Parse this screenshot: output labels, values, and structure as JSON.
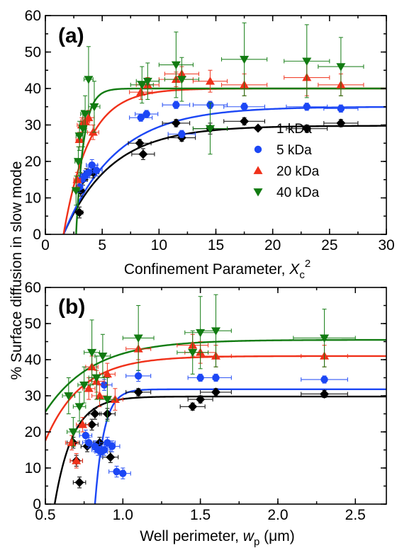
{
  "figure": {
    "ylabel": "% Surface diffusion in slow mode"
  },
  "chart_data": [
    {
      "type": "scatter",
      "panel_label": "(a)",
      "xlabel": "Confinement Parameter, ",
      "xlabel_symbol": "X",
      "xlabel_sub": "c",
      "xlabel_sup": "2",
      "xlim": [
        0,
        30
      ],
      "ylim": [
        0,
        60
      ],
      "xticks": [
        0,
        5,
        10,
        15,
        20,
        25,
        30
      ],
      "xtick_labels": [
        "0",
        "5",
        "10",
        "15",
        "20",
        "25",
        "30"
      ],
      "yticks": [
        0,
        10,
        20,
        30,
        40,
        50,
        60
      ],
      "ytick_labels": [
        "0",
        "10",
        "20",
        "30",
        "40",
        "50",
        "60"
      ],
      "legend": {
        "placement": "center-right",
        "items": [
          "1 kDa",
          "5 kDa",
          "20 kDa",
          "40 kDa"
        ]
      },
      "series": [
        {
          "name": "1 kDa",
          "marker": "diamond",
          "color": "#000000",
          "points": [
            [
              3.0,
              6,
              0.3,
              1.5
            ],
            [
              3.1,
              12,
              0.3,
              1.5
            ],
            [
              3.3,
              15,
              0.4,
              1.5
            ],
            [
              3.6,
              16.5,
              0.4,
              1.5
            ],
            [
              4.2,
              17,
              0.5,
              1.5
            ],
            [
              8.3,
              25,
              1,
              1
            ],
            [
              8.6,
              22,
              1,
              1.5
            ],
            [
              11.5,
              30.5,
              1.2,
              1
            ],
            [
              12,
              26.5,
              1.2,
              1
            ],
            [
              14.5,
              29,
              1.5,
              1.5
            ],
            [
              17.5,
              31,
              1.8,
              1
            ],
            [
              23,
              29,
              1.8,
              1
            ],
            [
              26,
              30.5,
              1.5,
              1
            ]
          ],
          "fit": {
            "plateau": 29.8,
            "onset": 1.6,
            "rate": 0.24
          }
        },
        {
          "name": "5 kDa",
          "marker": "circle",
          "color": "#1c47f5",
          "points": [
            [
              3.0,
              13,
              0.3,
              1.5
            ],
            [
              3.2,
              15,
              0.3,
              1.5
            ],
            [
              3.5,
              16,
              0.4,
              1.5
            ],
            [
              3.8,
              17,
              0.4,
              1.5
            ],
            [
              4.1,
              19,
              0.5,
              1.5
            ],
            [
              4.5,
              17.5,
              0.5,
              1.5
            ],
            [
              8.4,
              32,
              1,
              1
            ],
            [
              8.9,
              33,
              1,
              1
            ],
            [
              11.5,
              35.5,
              1.2,
              1
            ],
            [
              12,
              27.5,
              1.2,
              1
            ],
            [
              14.5,
              35.5,
              1.5,
              1
            ],
            [
              17.5,
              35,
              1.8,
              1
            ],
            [
              23,
              35,
              1.8,
              1
            ],
            [
              26,
              34.5,
              1.5,
              1
            ]
          ],
          "fit": {
            "plateau": 35,
            "onset": 1.6,
            "rate": 0.22
          }
        },
        {
          "name": "20 kDa",
          "marker": "triangle-up",
          "color": "#f0311a",
          "points": [
            [
              2.8,
              15,
              0.3,
              2
            ],
            [
              3.0,
              26,
              0.3,
              2
            ],
            [
              3.2,
              30,
              0.4,
              2
            ],
            [
              3.5,
              31,
              0.4,
              2
            ],
            [
              3.8,
              32,
              0.5,
              2
            ],
            [
              4.2,
              28,
              0.5,
              2
            ],
            [
              8.4,
              39,
              1,
              2
            ],
            [
              9,
              41,
              1,
              2
            ],
            [
              11.5,
              42.5,
              1.5,
              2
            ],
            [
              12,
              44,
              1.5,
              2
            ],
            [
              14.5,
              42,
              1.5,
              3
            ],
            [
              17.5,
              41,
              2,
              3
            ],
            [
              23,
              43,
              2,
              5
            ],
            [
              26,
              41,
              2,
              3
            ]
          ],
          "fit": {
            "plateau": 40,
            "onset": 1.6,
            "rate": 0.45
          }
        },
        {
          "name": "40 kDa",
          "marker": "triangle-down",
          "color": "#117b11",
          "points": [
            [
              2.7,
              12,
              0.3,
              4
            ],
            [
              2.9,
              20,
              0.3,
              4
            ],
            [
              3.0,
              27,
              0.3,
              4
            ],
            [
              3.3,
              29,
              0.3,
              5
            ],
            [
              3.5,
              33,
              0.4,
              5
            ],
            [
              3.8,
              42.5,
              0.4,
              9
            ],
            [
              4.3,
              35,
              0.5,
              7
            ],
            [
              8.5,
              41,
              1,
              5
            ],
            [
              9,
              42,
              1,
              5
            ],
            [
              11.5,
              46.5,
              1.5,
              9
            ],
            [
              12,
              42.5,
              1.5,
              6
            ],
            [
              14.5,
              29,
              1.5,
              7
            ],
            [
              17.5,
              48,
              2,
              10
            ],
            [
              23,
              47.5,
              2,
              10
            ],
            [
              26,
              46,
              2,
              8
            ]
          ],
          "fit": {
            "plateau": 40,
            "onset": 2.7,
            "rate": 1.5
          }
        }
      ]
    },
    {
      "type": "scatter",
      "panel_label": "(b)",
      "xlabel": "Well perimeter, ",
      "xlabel_symbol": "w",
      "xlabel_sub": "p",
      "xlabel_suffix": " (μm)",
      "xlim": [
        0.5,
        2.7
      ],
      "ylim": [
        0,
        60
      ],
      "xticks": [
        0.5,
        1.0,
        1.5,
        2.0,
        2.5
      ],
      "xtick_labels": [
        "0.5",
        "1.0",
        "1.5",
        "2.0",
        "2.5"
      ],
      "yticks": [
        0,
        10,
        20,
        30,
        40,
        50,
        60
      ],
      "ytick_labels": [
        "0",
        "10",
        "20",
        "30",
        "40",
        "50",
        "60"
      ],
      "series": [
        {
          "name": "1 kDa",
          "marker": "diamond",
          "color": "#000000",
          "points": [
            [
              0.68,
              17,
              0.04,
              1.5
            ],
            [
              0.7,
              12,
              0.04,
              1.5
            ],
            [
              0.72,
              6,
              0.04,
              1.5
            ],
            [
              0.77,
              16,
              0.04,
              1.5
            ],
            [
              0.8,
              22,
              0.04,
              1.5
            ],
            [
              0.82,
              25,
              0.04,
              1.5
            ],
            [
              0.85,
              17,
              0.04,
              1.5
            ],
            [
              0.9,
              25,
              0.05,
              1.5
            ],
            [
              0.92,
              13,
              0.05,
              1.5
            ],
            [
              1.1,
              31,
              0.08,
              1
            ],
            [
              1.45,
              27,
              0.08,
              1
            ],
            [
              1.5,
              29,
              0.08,
              1
            ],
            [
              1.6,
              31,
              0.1,
              1
            ],
            [
              2.3,
              30.5,
              0.15,
              1
            ]
          ],
          "fit": {
            "plateau": 29.8,
            "onset": 0.56,
            "rate": 8.5
          }
        },
        {
          "name": "5 kDa",
          "marker": "circle",
          "color": "#1c47f5",
          "points": [
            [
              0.76,
              19,
              0.04,
              1.5
            ],
            [
              0.78,
              17,
              0.04,
              1.5
            ],
            [
              0.82,
              16,
              0.04,
              1.5
            ],
            [
              0.84,
              15,
              0.04,
              1.5
            ],
            [
              0.86,
              14.5,
              0.04,
              1.5
            ],
            [
              0.88,
              15,
              0.04,
              1.5
            ],
            [
              0.9,
              17,
              0.05,
              1.5
            ],
            [
              0.93,
              16,
              0.05,
              1.5
            ],
            [
              0.96,
              9,
              0.05,
              1.5
            ],
            [
              1.0,
              8.5,
              0.05,
              1.5
            ],
            [
              0.88,
              33,
              0.05,
              1.5
            ],
            [
              1.1,
              35.5,
              0.08,
              1.5
            ],
            [
              1.5,
              35,
              0.08,
              1
            ],
            [
              1.6,
              35,
              0.1,
              1
            ],
            [
              2.3,
              34.5,
              0.15,
              1
            ]
          ],
          "fit": {
            "plateau": 31.8,
            "onset": 0.82,
            "rate": 17
          }
        },
        {
          "name": "20 kDa",
          "marker": "triangle-up",
          "color": "#f0311a",
          "points": [
            [
              0.67,
              17,
              0.04,
              2
            ],
            [
              0.7,
              12,
              0.04,
              2
            ],
            [
              0.74,
              22,
              0.04,
              2
            ],
            [
              0.78,
              32,
              0.04,
              3
            ],
            [
              0.8,
              38,
              0.04,
              3
            ],
            [
              0.83,
              34,
              0.05,
              3
            ],
            [
              0.85,
              30,
              0.05,
              3
            ],
            [
              0.9,
              36,
              0.05,
              3
            ],
            [
              0.95,
              29,
              0.05,
              3
            ],
            [
              1.1,
              43,
              0.08,
              3
            ],
            [
              1.45,
              44,
              0.1,
              3
            ],
            [
              1.5,
              42,
              0.1,
              3
            ],
            [
              1.6,
              41,
              0.1,
              3
            ],
            [
              2.3,
              41,
              0.15,
              3
            ]
          ],
          "fit": {
            "plateau": 41,
            "onset": 0.37,
            "rate": 4.3
          }
        },
        {
          "name": "40 kDa",
          "marker": "triangle-down",
          "color": "#117b11",
          "points": [
            [
              0.65,
              30,
              0.04,
              5
            ],
            [
              0.68,
              20,
              0.04,
              4
            ],
            [
              0.72,
              27,
              0.04,
              4
            ],
            [
              0.75,
              33,
              0.04,
              5
            ],
            [
              0.8,
              42,
              0.05,
              9
            ],
            [
              0.83,
              35,
              0.05,
              6
            ],
            [
              0.87,
              41,
              0.05,
              6
            ],
            [
              0.9,
              29,
              0.05,
              6
            ],
            [
              1.1,
              46,
              0.1,
              9
            ],
            [
              1.45,
              42,
              0.1,
              6
            ],
            [
              1.5,
              47.5,
              0.1,
              10
            ],
            [
              1.6,
              48,
              0.1,
              10
            ],
            [
              2.3,
              46,
              0.2,
              8
            ]
          ],
          "fit": {
            "plateau": 45.5,
            "onset": 0.25,
            "rate": 3.3
          }
        }
      ]
    }
  ]
}
